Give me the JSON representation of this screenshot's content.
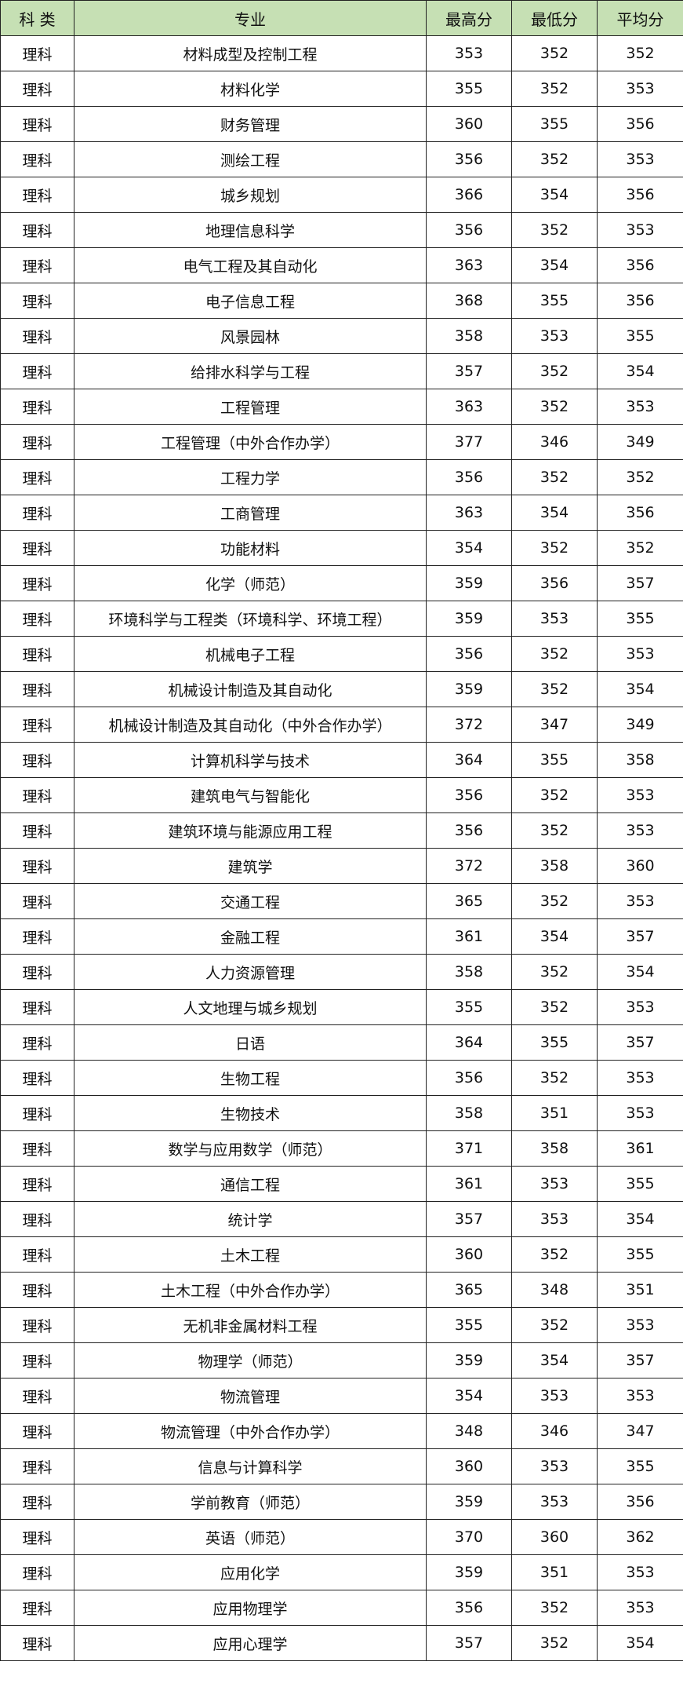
{
  "header_bg": "#c6e0b4",
  "columns": [
    "科 类",
    "专业",
    "最高分",
    "最低分",
    "平均分"
  ],
  "rows": [
    [
      "理科",
      "材料成型及控制工程",
      "353",
      "352",
      "352"
    ],
    [
      "理科",
      "材料化学",
      "355",
      "352",
      "353"
    ],
    [
      "理科",
      "财务管理",
      "360",
      "355",
      "356"
    ],
    [
      "理科",
      "测绘工程",
      "356",
      "352",
      "353"
    ],
    [
      "理科",
      "城乡规划",
      "366",
      "354",
      "356"
    ],
    [
      "理科",
      "地理信息科学",
      "356",
      "352",
      "353"
    ],
    [
      "理科",
      "电气工程及其自动化",
      "363",
      "354",
      "356"
    ],
    [
      "理科",
      "电子信息工程",
      "368",
      "355",
      "356"
    ],
    [
      "理科",
      "风景园林",
      "358",
      "353",
      "355"
    ],
    [
      "理科",
      "给排水科学与工程",
      "357",
      "352",
      "354"
    ],
    [
      "理科",
      "工程管理",
      "363",
      "352",
      "353"
    ],
    [
      "理科",
      "工程管理（中外合作办学）",
      "377",
      "346",
      "349"
    ],
    [
      "理科",
      "工程力学",
      "356",
      "352",
      "352"
    ],
    [
      "理科",
      "工商管理",
      "363",
      "354",
      "356"
    ],
    [
      "理科",
      "功能材料",
      "354",
      "352",
      "352"
    ],
    [
      "理科",
      "化学（师范）",
      "359",
      "356",
      "357"
    ],
    [
      "理科",
      "环境科学与工程类（环境科学、环境工程）",
      "359",
      "353",
      "355"
    ],
    [
      "理科",
      "机械电子工程",
      "356",
      "352",
      "353"
    ],
    [
      "理科",
      "机械设计制造及其自动化",
      "359",
      "352",
      "354"
    ],
    [
      "理科",
      "机械设计制造及其自动化（中外合作办学）",
      "372",
      "347",
      "349"
    ],
    [
      "理科",
      "计算机科学与技术",
      "364",
      "355",
      "358"
    ],
    [
      "理科",
      "建筑电气与智能化",
      "356",
      "352",
      "353"
    ],
    [
      "理科",
      "建筑环境与能源应用工程",
      "356",
      "352",
      "353"
    ],
    [
      "理科",
      "建筑学",
      "372",
      "358",
      "360"
    ],
    [
      "理科",
      "交通工程",
      "365",
      "352",
      "353"
    ],
    [
      "理科",
      "金融工程",
      "361",
      "354",
      "357"
    ],
    [
      "理科",
      "人力资源管理",
      "358",
      "352",
      "354"
    ],
    [
      "理科",
      "人文地理与城乡规划",
      "355",
      "352",
      "353"
    ],
    [
      "理科",
      "日语",
      "364",
      "355",
      "357"
    ],
    [
      "理科",
      "生物工程",
      "356",
      "352",
      "353"
    ],
    [
      "理科",
      "生物技术",
      "358",
      "351",
      "353"
    ],
    [
      "理科",
      "数学与应用数学（师范）",
      "371",
      "358",
      "361"
    ],
    [
      "理科",
      "通信工程",
      "361",
      "353",
      "355"
    ],
    [
      "理科",
      "统计学",
      "357",
      "353",
      "354"
    ],
    [
      "理科",
      "土木工程",
      "360",
      "352",
      "355"
    ],
    [
      "理科",
      "土木工程（中外合作办学）",
      "365",
      "348",
      "351"
    ],
    [
      "理科",
      "无机非金属材料工程",
      "355",
      "352",
      "353"
    ],
    [
      "理科",
      "物理学（师范）",
      "359",
      "354",
      "357"
    ],
    [
      "理科",
      "物流管理",
      "354",
      "353",
      "353"
    ],
    [
      "理科",
      "物流管理（中外合作办学）",
      "348",
      "346",
      "347"
    ],
    [
      "理科",
      "信息与计算科学",
      "360",
      "353",
      "355"
    ],
    [
      "理科",
      "学前教育（师范）",
      "359",
      "353",
      "356"
    ],
    [
      "理科",
      "英语（师范）",
      "370",
      "360",
      "362"
    ],
    [
      "理科",
      "应用化学",
      "359",
      "351",
      "353"
    ],
    [
      "理科",
      "应用物理学",
      "356",
      "352",
      "353"
    ],
    [
      "理科",
      "应用心理学",
      "357",
      "352",
      "354"
    ]
  ]
}
